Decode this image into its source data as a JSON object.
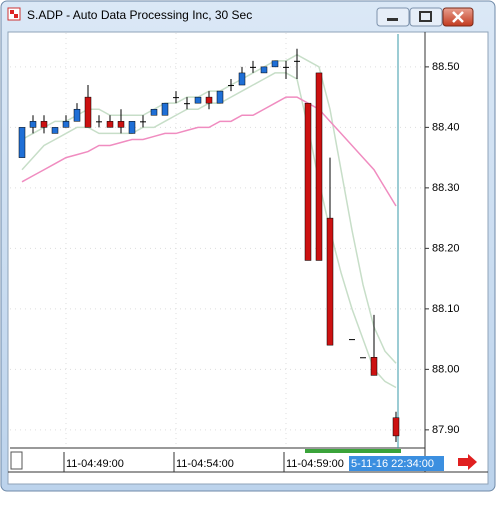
{
  "window": {
    "title": "S.ADP - Auto Data Processing Inc, 30 Sec"
  },
  "chart_data": {
    "type": "candlestick",
    "categories": [
      null,
      null,
      null,
      null,
      "11-04:49:00",
      null,
      null,
      null,
      null,
      null,
      null,
      null,
      null,
      null,
      "11-04:54:00",
      null,
      null,
      null,
      null,
      null,
      null,
      null,
      null,
      null,
      "11-04:59:00",
      null,
      null,
      null,
      null,
      null,
      null,
      null,
      null,
      null,
      null
    ],
    "cursor_label": "5-11-16 22:34:00",
    "open": [
      88.35,
      88.4,
      88.41,
      88.39,
      88.4,
      88.41,
      88.45,
      88.41,
      88.41,
      88.41,
      88.39,
      88.41,
      88.42,
      88.42,
      88.45,
      88.44,
      88.44,
      88.45,
      88.44,
      88.47,
      88.47,
      88.5,
      88.49,
      88.5,
      88.5,
      88.51,
      88.44,
      88.49,
      88.25,
      null,
      88.05,
      88.02,
      88.02,
      null,
      87.92
    ],
    "high": [
      88.4,
      88.42,
      88.42,
      88.4,
      88.42,
      88.44,
      88.47,
      88.42,
      88.42,
      88.43,
      88.41,
      88.42,
      88.43,
      88.44,
      88.46,
      88.45,
      88.45,
      88.46,
      88.46,
      88.48,
      88.5,
      88.51,
      88.5,
      88.51,
      88.51,
      88.53,
      88.44,
      88.49,
      88.35,
      null,
      88.05,
      88.02,
      88.09,
      null,
      87.93
    ],
    "low": [
      88.35,
      88.39,
      88.39,
      88.39,
      88.4,
      88.41,
      88.4,
      88.4,
      88.4,
      88.39,
      88.39,
      88.4,
      88.42,
      88.42,
      88.44,
      88.43,
      88.44,
      88.43,
      88.44,
      88.46,
      88.47,
      88.49,
      88.49,
      88.5,
      88.48,
      88.48,
      88.18,
      88.18,
      88.04,
      null,
      88.05,
      88.02,
      87.99,
      null,
      87.88
    ],
    "close": [
      88.4,
      88.41,
      88.4,
      88.4,
      88.41,
      88.43,
      88.4,
      88.41,
      88.4,
      88.4,
      88.41,
      88.41,
      88.43,
      88.44,
      88.45,
      88.44,
      88.45,
      88.44,
      88.46,
      88.47,
      88.49,
      88.5,
      88.5,
      88.51,
      88.5,
      88.51,
      88.18,
      88.18,
      88.04,
      null,
      88.05,
      88.02,
      87.99,
      null,
      87.89
    ],
    "up_color": "#1f6fd6",
    "down_color": "#cc1111",
    "lines": [
      {
        "color": "#c7dec8",
        "values": [
          88.38,
          88.39,
          88.4,
          88.41,
          88.41,
          88.42,
          88.43,
          88.43,
          88.42,
          88.42,
          88.42,
          88.42,
          88.43,
          88.44,
          88.44,
          88.45,
          88.45,
          88.46,
          88.46,
          88.47,
          88.48,
          88.49,
          88.5,
          88.51,
          88.51,
          88.52,
          88.51,
          88.5,
          88.43,
          88.33,
          88.23,
          88.14,
          88.07,
          88.03,
          88.01
        ]
      },
      {
        "color": "#c7dec8",
        "values": [
          88.33,
          88.35,
          88.37,
          88.38,
          88.39,
          88.4,
          88.4,
          88.39,
          88.39,
          88.39,
          88.39,
          88.4,
          88.4,
          88.41,
          88.42,
          88.43,
          88.43,
          88.44,
          88.44,
          88.45,
          88.46,
          88.47,
          88.48,
          88.49,
          88.49,
          88.48,
          88.4,
          88.31,
          88.23,
          88.16,
          88.1,
          88.05,
          88.0,
          87.98,
          87.97
        ]
      },
      {
        "color": "#f08cc0",
        "values": [
          88.31,
          88.32,
          88.33,
          88.34,
          88.35,
          88.355,
          88.36,
          88.37,
          88.37,
          88.375,
          88.38,
          88.38,
          88.385,
          88.39,
          88.39,
          88.395,
          88.4,
          88.4,
          88.41,
          88.41,
          88.42,
          88.42,
          88.43,
          88.44,
          88.45,
          88.45,
          88.44,
          88.43,
          88.41,
          88.39,
          88.37,
          88.35,
          88.33,
          88.3,
          88.27
        ]
      }
    ],
    "ylim": [
      87.87,
      88.556
    ],
    "yticks": [
      {
        "value": 88.5,
        "label": "88.50"
      },
      {
        "value": 88.4,
        "label": "88.40"
      },
      {
        "value": 88.3,
        "label": "88.30"
      },
      {
        "value": 88.2,
        "label": "88.20"
      },
      {
        "value": 88.1,
        "label": "88.10"
      },
      {
        "value": 88.0,
        "label": "88.00"
      },
      {
        "value": 87.9,
        "label": "87.90"
      }
    ],
    "grid": true
  }
}
